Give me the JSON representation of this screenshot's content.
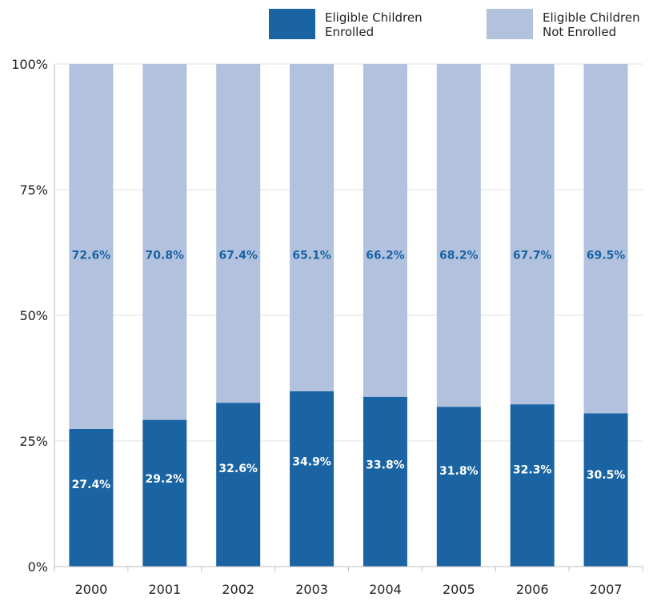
{
  "chart_data": {
    "type": "bar",
    "stacked": true,
    "categories": [
      "2000",
      "2001",
      "2002",
      "2003",
      "2004",
      "2005",
      "2006",
      "2007"
    ],
    "series": [
      {
        "name": "Eligible Children Enrolled",
        "color": "#1a64a3",
        "values": [
          27.4,
          29.2,
          32.6,
          34.9,
          33.8,
          31.8,
          32.3,
          30.5
        ],
        "labels": [
          "27.4%",
          "29.2%",
          "32.6%",
          "34.9%",
          "33.8%",
          "31.8%",
          "32.3%",
          "30.5%"
        ],
        "label_color": "#ffffff"
      },
      {
        "name": "Eligible Children Not Enrolled",
        "color": "#b1c1de",
        "values": [
          72.6,
          70.8,
          67.4,
          65.1,
          66.2,
          68.2,
          67.7,
          69.5
        ],
        "labels": [
          "72.6%",
          "70.8%",
          "67.4%",
          "65.1%",
          "66.2%",
          "68.2%",
          "67.7%",
          "69.5%"
        ],
        "label_color": "#1a64a3"
      }
    ],
    "legend": {
      "position": "top-right",
      "items": [
        {
          "lines": [
            "Eligible Children",
            "Enrolled"
          ],
          "color": "#1a64a3"
        },
        {
          "lines": [
            "Eligible Children",
            "Not Enrolled"
          ],
          "color": "#b1c1de"
        }
      ]
    },
    "yticks": [
      "0%",
      "25%",
      "50%",
      "75%",
      "100%"
    ],
    "ylim": [
      0,
      100
    ],
    "grid": true,
    "title": "",
    "xlabel": "",
    "ylabel": ""
  }
}
